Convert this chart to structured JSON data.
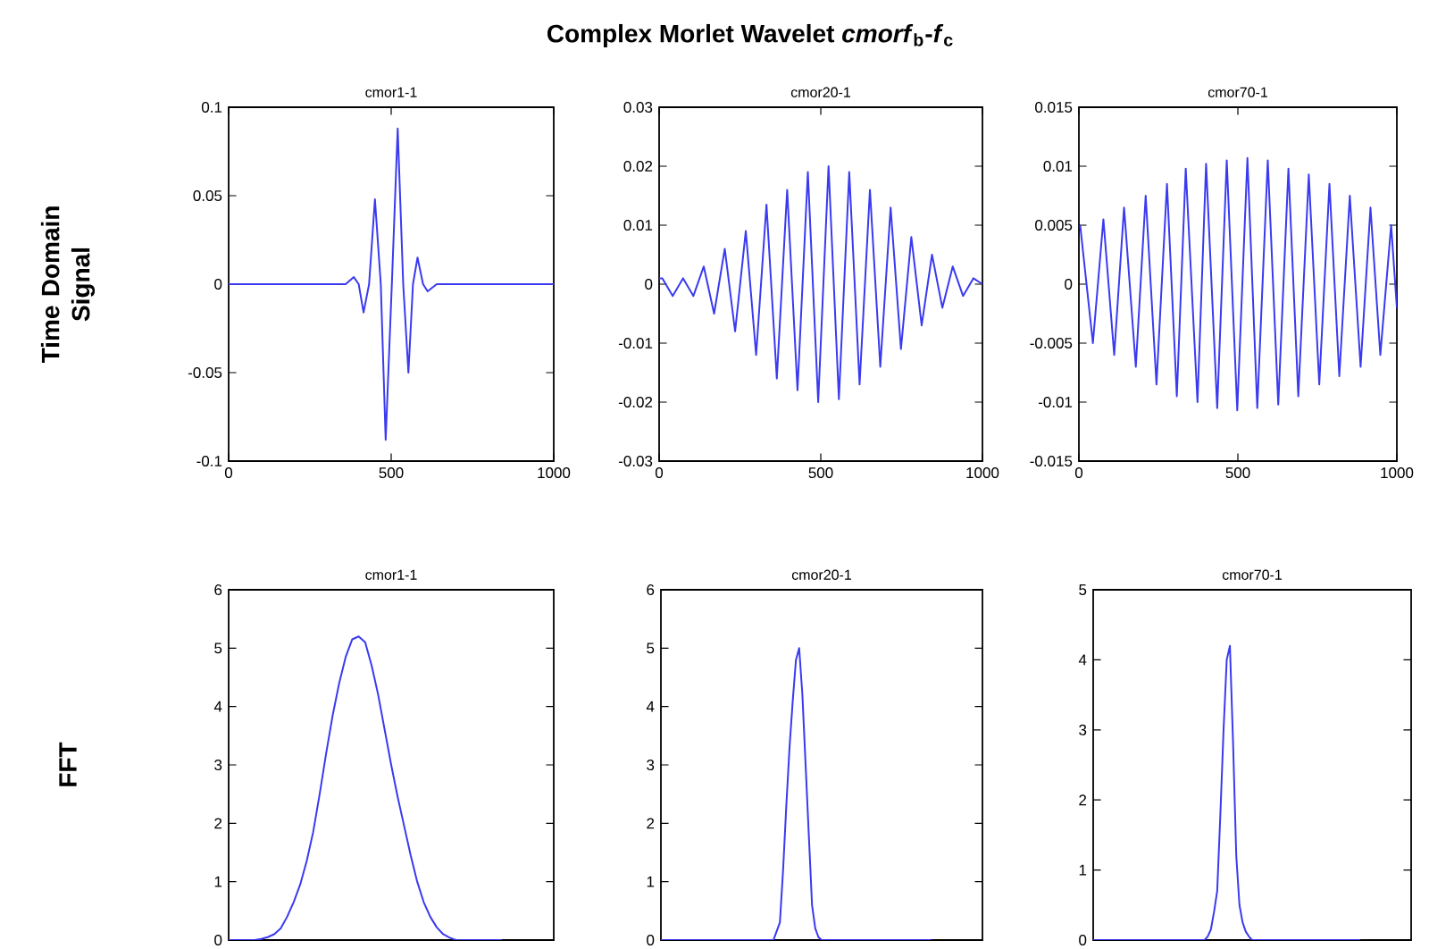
{
  "chart_data": [
    {
      "type": "line",
      "title": "cmor1-1",
      "ylabel": "Time Domain Signal",
      "color": "#3a3af0",
      "xlim": [
        0,
        1000
      ],
      "xticks": [
        0,
        500,
        1000
      ],
      "ylim": [
        -0.1,
        0.1
      ],
      "yticks": [
        -0.1,
        -0.05,
        0,
        0.05,
        0.1
      ],
      "x": [
        0,
        300,
        360,
        385,
        400,
        415,
        432,
        450,
        468,
        483,
        502,
        520,
        537,
        553,
        567,
        581,
        598,
        612,
        640,
        1000
      ],
      "values": [
        0,
        0,
        0,
        0.004,
        0,
        -0.016,
        0,
        0.048,
        0,
        -0.088,
        0,
        0.088,
        0,
        -0.05,
        0,
        0.015,
        0,
        -0.004,
        0,
        0
      ]
    },
    {
      "type": "line",
      "title": "cmor20-1",
      "annotations": [
        "Complex Morlet Wavelet *cmorf*$_{b}$-*f*$_{c}$"
      ],
      "color": "#3a3af0",
      "xlim": [
        0,
        1000
      ],
      "xticks": [
        0,
        500,
        1000
      ],
      "ylim": [
        -0.03,
        0.03
      ],
      "yticks": [
        -0.03,
        -0.02,
        -0.01,
        0,
        0.01,
        0.02,
        0.03
      ],
      "x": [
        0,
        10,
        42,
        74,
        106,
        138,
        170,
        203,
        235,
        268,
        300,
        332,
        364,
        396,
        428,
        460,
        492,
        524,
        556,
        588,
        620,
        652,
        684,
        716,
        748,
        780,
        812,
        844,
        876,
        908,
        940,
        972,
        1000
      ],
      "values": [
        0.001,
        0.001,
        -0.002,
        0.001,
        -0.002,
        0.003,
        -0.005,
        0.006,
        -0.008,
        0.009,
        -0.012,
        0.0135,
        -0.016,
        0.016,
        -0.018,
        0.019,
        -0.02,
        0.02,
        -0.0195,
        0.019,
        -0.017,
        0.016,
        -0.014,
        0.013,
        -0.011,
        0.008,
        -0.007,
        0.005,
        -0.004,
        0.003,
        -0.002,
        0.001,
        0
      ]
    },
    {
      "type": "line",
      "title": "cmor70-1",
      "color": "#3a3af0",
      "xlim": [
        0,
        1000
      ],
      "xticks": [
        0,
        500,
        1000
      ],
      "ylim": [
        -0.015,
        0.015
      ],
      "yticks": [
        -0.015,
        -0.01,
        -0.005,
        0,
        0.005,
        0.01,
        0.015
      ],
      "x": [
        4,
        44,
        77,
        111,
        142,
        179,
        210,
        244,
        277,
        308,
        336,
        373,
        400,
        435,
        465,
        498,
        530,
        561,
        594,
        627,
        659,
        690,
        723,
        756,
        788,
        819,
        852,
        886,
        917,
        948,
        982,
        1000
      ],
      "values": [
        0.005,
        -0.005,
        0.0055,
        -0.006,
        0.0065,
        -0.007,
        0.0075,
        -0.0085,
        0.0085,
        -0.0095,
        0.0098,
        -0.01,
        0.0102,
        -0.0105,
        0.0105,
        -0.0107,
        0.0107,
        -0.0105,
        0.0105,
        -0.0102,
        0.0098,
        -0.0095,
        0.0093,
        -0.0085,
        0.0085,
        -0.0078,
        0.0075,
        -0.007,
        0.0065,
        -0.006,
        0.005,
        -0.002
      ]
    },
    {
      "type": "line",
      "title": "cmor1-1",
      "ylabel": "FFT",
      "color": "#3a3af0",
      "ylim": [
        0,
        6
      ],
      "yticks": [
        0,
        1,
        2,
        3,
        4,
        5,
        6
      ],
      "tick_labels": "y",
      "categories": [
        null,
        null,
        null,
        null,
        null,
        null,
        null,
        null,
        null,
        null,
        null,
        null,
        null,
        null,
        null,
        null,
        null,
        null,
        null,
        null,
        null,
        null,
        null,
        null,
        null,
        null,
        null,
        null,
        null,
        null,
        null,
        null,
        null,
        null,
        null,
        null,
        null,
        null,
        null,
        null,
        null,
        null,
        null
      ],
      "values": [
        0,
        0,
        0,
        0,
        0,
        0.02,
        0.05,
        0.1,
        0.2,
        0.4,
        0.65,
        0.95,
        1.35,
        1.85,
        2.5,
        3.2,
        3.85,
        4.4,
        4.85,
        5.15,
        5.2,
        5.1,
        4.7,
        4.2,
        3.6,
        3.0,
        2.45,
        1.95,
        1.45,
        1.0,
        0.65,
        0.4,
        0.22,
        0.1,
        0.04,
        0,
        0,
        0,
        0,
        0,
        0,
        0,
        0
      ]
    },
    {
      "type": "line",
      "title": "cmor20-1",
      "color": "#3a3af0",
      "ylim": [
        0,
        6
      ],
      "yticks": [
        0,
        1,
        2,
        3,
        4,
        5,
        6
      ],
      "tick_labels": "y",
      "categories": [
        null,
        null,
        null,
        null,
        null,
        null,
        null,
        null,
        null,
        null,
        null,
        null,
        null,
        null,
        null,
        null,
        null,
        null,
        null,
        null,
        null,
        null,
        null,
        null,
        null,
        null,
        null,
        null,
        null,
        null,
        null,
        null,
        null,
        null,
        null,
        null,
        null,
        null,
        null,
        null,
        null,
        null,
        null,
        null,
        null,
        null,
        null,
        null,
        null,
        null,
        null,
        null,
        null,
        null,
        null,
        null,
        null,
        null,
        null,
        null,
        null,
        null,
        null,
        null,
        null,
        null,
        null,
        null,
        null,
        null,
        null,
        null,
        null,
        null,
        null,
        null,
        null,
        null,
        null,
        null,
        null,
        null,
        null,
        null,
        null
      ],
      "values": [
        0,
        0,
        0,
        0,
        0,
        0,
        0,
        0,
        0,
        0,
        0,
        0,
        0,
        0,
        0,
        0,
        0,
        0,
        0,
        0,
        0,
        0,
        0,
        0,
        0,
        0,
        0,
        0,
        0,
        0,
        0,
        0,
        0,
        0,
        0,
        0,
        0.15,
        0.3,
        1.2,
        2.3,
        3.3,
        4.1,
        4.8,
        5.0,
        4.2,
        3.0,
        1.8,
        0.6,
        0.2,
        0.05,
        0,
        0,
        0,
        0,
        0,
        0,
        0,
        0,
        0,
        0,
        0,
        0,
        0,
        0,
        0,
        0,
        0,
        0,
        0,
        0,
        0,
        0,
        0,
        0,
        0,
        0,
        0,
        0,
        0,
        0,
        0,
        0,
        0,
        0,
        0
      ]
    },
    {
      "type": "line",
      "title": "cmor70-1",
      "color": "#3a3af0",
      "ylim": [
        0,
        5
      ],
      "yticks": [
        0,
        1,
        2,
        3,
        4,
        5
      ],
      "tick_labels": "y",
      "categories": [
        null,
        null,
        null,
        null,
        null,
        null,
        null,
        null,
        null,
        null,
        null,
        null,
        null,
        null,
        null,
        null,
        null,
        null,
        null,
        null,
        null,
        null,
        null,
        null,
        null,
        null,
        null,
        null,
        null,
        null,
        null,
        null,
        null,
        null,
        null,
        null,
        null,
        null,
        null,
        null,
        null,
        null,
        null,
        null,
        null,
        null,
        null,
        null,
        null,
        null,
        null,
        null,
        null,
        null,
        null,
        null,
        null,
        null,
        null,
        null,
        null,
        null,
        null,
        null,
        null,
        null,
        null,
        null,
        null,
        null,
        null,
        null,
        null,
        null,
        null,
        null,
        null,
        null,
        null,
        null,
        null,
        null,
        null,
        null,
        null
      ],
      "values": [
        0,
        0,
        0,
        0,
        0,
        0,
        0,
        0,
        0,
        0,
        0,
        0,
        0,
        0,
        0,
        0,
        0,
        0,
        0,
        0,
        0,
        0,
        0,
        0,
        0,
        0,
        0,
        0,
        0,
        0,
        0,
        0,
        0,
        0,
        0,
        0,
        0.05,
        0.15,
        0.4,
        0.7,
        1.8,
        3.0,
        4.0,
        4.2,
        2.8,
        1.2,
        0.5,
        0.25,
        0.12,
        0.05,
        0,
        0,
        0,
        0,
        0,
        0,
        0,
        0,
        0,
        0,
        0,
        0,
        0,
        0,
        0,
        0,
        0,
        0,
        0,
        0,
        0,
        0,
        0,
        0,
        0,
        0,
        0,
        0,
        0,
        0,
        0,
        0,
        0,
        0,
        0
      ]
    }
  ]
}
